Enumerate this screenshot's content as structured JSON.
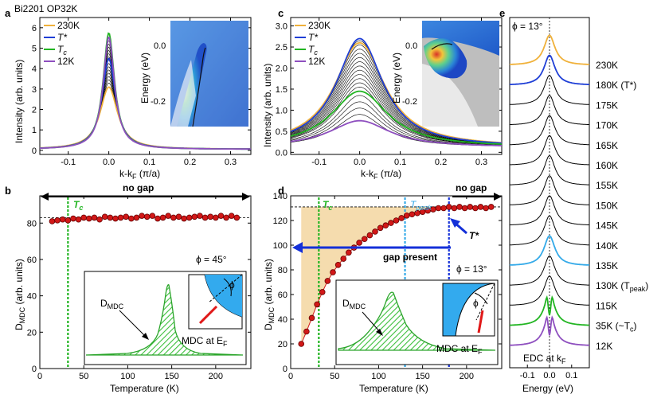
{
  "figure": {
    "sample_label": "Bi2201 OP32K",
    "panel_letters": [
      "a",
      "b",
      "c",
      "d",
      "e"
    ]
  },
  "colors": {
    "t230": "#f0b13a",
    "tstar": "#1f3fd6",
    "tc": "#22b522",
    "t12": "#8e4fbf",
    "tpeak": "#33a9e8",
    "data_red": "#d21818",
    "shade": "#f5dcae",
    "gap_arrow": "#1430d8"
  },
  "chart_data": [
    {
      "id": "a",
      "type": "line",
      "title": "",
      "xlabel": "k-k",
      "xlabel_sub": "F",
      "xlabel_suffix": " (π/a)",
      "ylabel": "Intensity (arb. units)",
      "xlim": [
        -0.17,
        0.35
      ],
      "ylim": [
        -0.2,
        6.5
      ],
      "xticks": [
        "-0.1",
        "0.0",
        "0.1",
        "0.2",
        "0.3"
      ],
      "xtick_values": [
        -0.1,
        0.0,
        0.1,
        0.2,
        0.3
      ],
      "yticks": [
        "0",
        "1",
        "2",
        "3",
        "4",
        "5",
        "6"
      ],
      "ytick_values": [
        0,
        1,
        2,
        3,
        4,
        5,
        6
      ],
      "legend": [
        {
          "label": "230K",
          "series": "230K"
        },
        {
          "label": "T*",
          "series": "T*"
        },
        {
          "label": "T",
          "sub": "c",
          "series": "Tc"
        },
        {
          "label": "12K",
          "series": "12K"
        }
      ],
      "peak_model": {
        "width": 0.018,
        "baseline": 0.05
      },
      "series": [
        {
          "name": "230K",
          "peak": 3.1,
          "width": 0.026
        },
        {
          "name": "T*",
          "peak": 4.5,
          "width": 0.02
        },
        {
          "name": "Tc",
          "peak": 5.75,
          "width": 0.017
        },
        {
          "name": "12K",
          "peak": 5.55,
          "width": 0.017
        }
      ],
      "inset": {
        "ylabel": "Energy (eV)",
        "yticks": [
          "0.0",
          "-0.2"
        ]
      }
    },
    {
      "id": "b",
      "type": "scatter",
      "xlabel": "Temperature (K)",
      "ylabel": "D",
      "ylabel_sub": "MDC",
      "ylabel_suffix": " (arb. units)",
      "xlim": [
        0,
        240
      ],
      "ylim": [
        0,
        95
      ],
      "xticks": [
        "0",
        "50",
        "100",
        "150",
        "200"
      ],
      "xtick_values": [
        0,
        50,
        100,
        150,
        200
      ],
      "yticks": [
        "0",
        "20",
        "40",
        "60",
        "80"
      ],
      "ytick_values": [
        0,
        20,
        40,
        60,
        80
      ],
      "reference_level": 83,
      "tc": 32,
      "x": [
        14,
        20,
        26,
        32,
        38,
        44,
        50,
        56,
        62,
        68,
        74,
        80,
        86,
        92,
        98,
        104,
        110,
        116,
        122,
        128,
        134,
        140,
        146,
        152,
        158,
        164,
        170,
        176,
        182,
        188,
        194,
        200,
        206,
        212,
        218,
        224
      ],
      "y": [
        81,
        81.5,
        82,
        81.5,
        82.5,
        82,
        83,
        82.5,
        83,
        82,
        83.5,
        83,
        82.5,
        83,
        83.5,
        82.5,
        83,
        84,
        83.5,
        84,
        82.5,
        83,
        84,
        83,
        83.5,
        82.5,
        83,
        83.5,
        84,
        83,
        83.5,
        83,
        84,
        83,
        84,
        83
      ],
      "annotations": {
        "no_gap": "no gap",
        "tc_label": "T",
        "tc_sub": "c",
        "phi": "ϕ  = 45°",
        "inset_d": "D",
        "inset_d_sub": "MDC",
        "inset_mdc": "MDC at E",
        "inset_mdc_sub": "F",
        "inset_phi": "ϕ"
      }
    },
    {
      "id": "c",
      "type": "line",
      "xlabel": "k-k",
      "xlabel_sub": "F",
      "xlabel_suffix": " (π/a)",
      "ylabel": "Intensity (arb. units)",
      "xlim": [
        -0.17,
        0.35
      ],
      "ylim": [
        -0.05,
        3.2
      ],
      "xticks": [
        "-0.1",
        "0.0",
        "0.1",
        "0.2",
        "0.3"
      ],
      "xtick_values": [
        -0.1,
        0.0,
        0.1,
        0.2,
        0.3
      ],
      "yticks": [
        "0.0",
        "0.5",
        "1.0",
        "1.5",
        "2.0",
        "2.5",
        "3.0"
      ],
      "ytick_values": [
        0,
        0.5,
        1,
        1.5,
        2,
        2.5,
        3
      ],
      "legend": [
        {
          "label": "230K",
          "series": "230K"
        },
        {
          "label": "T*",
          "series": "T*"
        },
        {
          "label": "T",
          "sub": "c",
          "series": "Tc"
        },
        {
          "label": "12K",
          "series": "12K"
        }
      ],
      "series": [
        {
          "name": "230K",
          "peak": 2.6,
          "width": 0.075
        },
        {
          "name": "T*",
          "peak": 2.7,
          "width": 0.07
        },
        {
          "name": "Tc",
          "peak": 1.45,
          "width": 0.085
        },
        {
          "name": "12K",
          "peak": 0.75,
          "width": 0.09
        }
      ],
      "gray_peaks": [
        2.65,
        2.55,
        2.45,
        2.35,
        2.25,
        2.15,
        2.05,
        1.95,
        1.85,
        1.75,
        1.65,
        1.55,
        1.35,
        1.2,
        1.05,
        0.9
      ],
      "inset": {
        "ylabel": "Energy (eV)",
        "yticks": [
          "0.0",
          "-0.2"
        ]
      }
    },
    {
      "id": "d",
      "type": "scatter",
      "xlabel": "Temperature (K)",
      "ylabel": "D",
      "ylabel_sub": "MDC",
      "ylabel_suffix": " (arb. units)",
      "xlim": [
        0,
        240
      ],
      "ylim": [
        0,
        140
      ],
      "xticks": [
        "0",
        "50",
        "100",
        "150",
        "200"
      ],
      "xtick_values": [
        0,
        50,
        100,
        150,
        200
      ],
      "yticks": [
        "0",
        "20",
        "40",
        "60",
        "80",
        "100",
        "120",
        "140"
      ],
      "ytick_values": [
        0,
        20,
        40,
        60,
        80,
        100,
        120,
        140
      ],
      "reference_level": 131,
      "tc": 32,
      "tpeak": 130,
      "tstar": 180,
      "x": [
        12,
        18,
        24,
        30,
        36,
        42,
        48,
        54,
        60,
        66,
        72,
        78,
        84,
        90,
        96,
        102,
        108,
        114,
        120,
        126,
        132,
        138,
        144,
        150,
        156,
        162,
        168,
        174,
        180,
        186,
        192,
        198,
        204,
        210,
        216,
        222,
        228
      ],
      "y": [
        20,
        30,
        41,
        52,
        62,
        71,
        78,
        84,
        89,
        94,
        98,
        102,
        105,
        108,
        111,
        114,
        116,
        118,
        120,
        122,
        124,
        125,
        126,
        127,
        128,
        129,
        130,
        130,
        131,
        130,
        131,
        130,
        131,
        130,
        131,
        130,
        131
      ],
      "annotations": {
        "no_gap": "no gap",
        "gap_present": "gap present",
        "tc_label": "T",
        "tc_sub": "c",
        "tpeak_label": "T",
        "tpeak_sub": "peak",
        "tstar_label": "T*",
        "phi": "ϕ  = 13°",
        "inset_d": "D",
        "inset_d_sub": "MDC",
        "inset_mdc": "MDC at E",
        "inset_mdc_sub": "F",
        "inset_phi": "ϕ"
      }
    },
    {
      "id": "e",
      "type": "line",
      "xlabel": "Energy (eV)",
      "xlim": [
        -0.18,
        0.18
      ],
      "xticks": [
        "-0.1",
        "0.0",
        "0.1"
      ],
      "xtick_values": [
        -0.1,
        0.0,
        0.1
      ],
      "phi_label": "ϕ  = 13°",
      "edc_label": "EDC    at k",
      "edc_sub": "F",
      "series": [
        {
          "name": "230K",
          "label": "230K",
          "color_key": "t230",
          "gap": false
        },
        {
          "name": "180K",
          "label": "180K (T*)",
          "color_key": "tstar",
          "gap": false
        },
        {
          "name": "175K",
          "label": "175K",
          "color_key": "black",
          "gap": false
        },
        {
          "name": "170K",
          "label": "170K",
          "color_key": "black",
          "gap": false
        },
        {
          "name": "165K",
          "label": "165K",
          "color_key": "black",
          "gap": false
        },
        {
          "name": "160K",
          "label": "160K",
          "color_key": "black",
          "gap": false
        },
        {
          "name": "155K",
          "label": "155K",
          "color_key": "black",
          "gap": false
        },
        {
          "name": "150K",
          "label": "150K",
          "color_key": "black",
          "gap": false
        },
        {
          "name": "145K",
          "label": "145K",
          "color_key": "black",
          "gap": false
        },
        {
          "name": "140K",
          "label": "140K",
          "color_key": "black",
          "gap": false
        },
        {
          "name": "135K",
          "label": "135K",
          "color_key": "tpeak",
          "gap": false
        },
        {
          "name": "130K",
          "label": "130K (T",
          "label_sub": "peak",
          "label_end": ")",
          "color_key": "black",
          "gap": false
        },
        {
          "name": "115K",
          "label": "115K",
          "color_key": "black",
          "gap": false
        },
        {
          "name": "35K",
          "label": "35K (~T",
          "label_sub": "c",
          "label_end": ")",
          "color_key": "tc",
          "gap": true
        },
        {
          "name": "12K",
          "label": "12K",
          "color_key": "t12",
          "gap": true
        }
      ]
    }
  ]
}
